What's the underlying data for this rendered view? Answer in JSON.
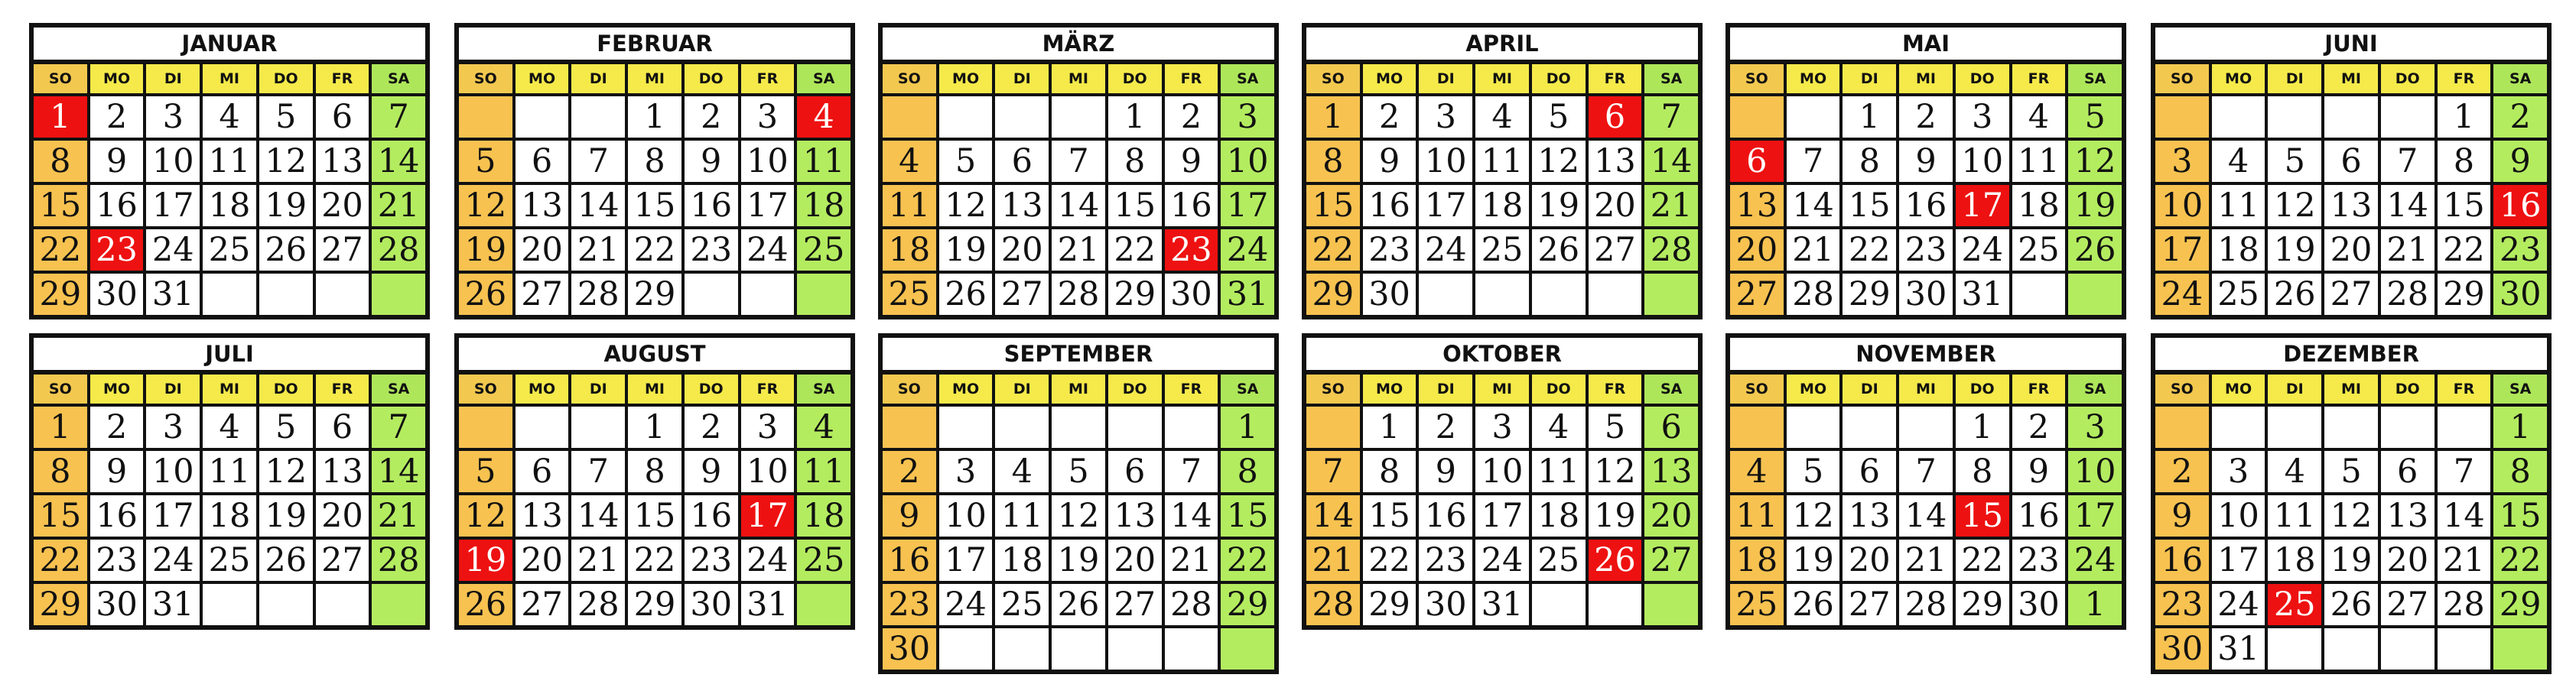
{
  "weekdays": [
    "SO",
    "MO",
    "DI",
    "MI",
    "DO",
    "FR",
    "SA"
  ],
  "colors": {
    "weekday_header": "#f5ea4a",
    "sunday_header": "#f2c84f",
    "saturday_header": "#aee65a",
    "sunday_cell": "#f7c250",
    "saturday_cell": "#b4ec60",
    "holiday": "#ee1111",
    "border": "#111111"
  },
  "months": [
    {
      "name": "JANUAR",
      "start": 0,
      "days": 31,
      "rows": 5,
      "holidays": [
        1,
        23
      ],
      "extra": []
    },
    {
      "name": "FEBRUAR",
      "start": 3,
      "days": 29,
      "rows": 5,
      "holidays": [
        4
      ],
      "extra": []
    },
    {
      "name": "MÄRZ",
      "start": 4,
      "days": 31,
      "rows": 5,
      "holidays": [
        23
      ],
      "extra": []
    },
    {
      "name": "APRIL",
      "start": 0,
      "days": 30,
      "rows": 5,
      "holidays": [
        6
      ],
      "extra": []
    },
    {
      "name": "MAI",
      "start": 2,
      "days": 31,
      "rows": 5,
      "holidays": [
        6,
        17
      ],
      "extra": []
    },
    {
      "name": "JUNI",
      "start": 5,
      "days": 30,
      "rows": 5,
      "holidays": [
        16
      ],
      "extra": []
    },
    {
      "name": "JULI",
      "start": 0,
      "days": 31,
      "rows": 5,
      "holidays": [],
      "extra": []
    },
    {
      "name": "AUGUST",
      "start": 3,
      "days": 31,
      "rows": 5,
      "holidays": [
        17,
        19
      ],
      "extra": []
    },
    {
      "name": "SEPTEMBER",
      "start": 6,
      "days": 30,
      "rows": 6,
      "holidays": [],
      "extra": []
    },
    {
      "name": "OKTOBER",
      "start": 1,
      "days": 31,
      "rows": 5,
      "holidays": [
        26
      ],
      "extra": []
    },
    {
      "name": "NOVEMBER",
      "start": 4,
      "days": 30,
      "rows": 5,
      "holidays": [
        15
      ],
      "extra": [
        1
      ]
    },
    {
      "name": "DEZEMBER",
      "start": 6,
      "days": 31,
      "rows": 6,
      "holidays": [
        25
      ],
      "extra": []
    }
  ]
}
